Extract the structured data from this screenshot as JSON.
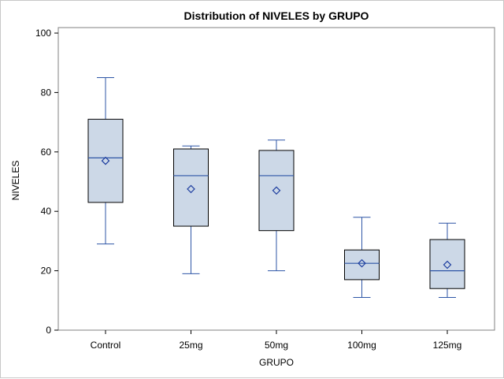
{
  "chart_data": {
    "type": "box",
    "title": "Distribution of NIVELES by GRUPO",
    "xlabel": "GRUPO",
    "ylabel": "NIVELES",
    "ylim": [
      0,
      100
    ],
    "yticks": [
      0,
      20,
      40,
      60,
      80,
      100
    ],
    "categories": [
      "Control",
      "25mg",
      "50mg",
      "100mg",
      "125mg"
    ],
    "boxes": [
      {
        "category": "Control",
        "min": 29,
        "q1": 43,
        "median": 58,
        "q3": 71,
        "max": 85,
        "mean": 57
      },
      {
        "category": "25mg",
        "min": 19,
        "q1": 35,
        "median": 52,
        "q3": 61,
        "max": 62,
        "mean": 47.5
      },
      {
        "category": "50mg",
        "min": 20,
        "q1": 33.5,
        "median": 52,
        "q3": 60.5,
        "max": 64,
        "mean": 47
      },
      {
        "category": "100mg",
        "min": 11,
        "q1": 17,
        "median": 22.5,
        "q3": 27,
        "max": 38,
        "mean": 22.5
      },
      {
        "category": "125mg",
        "min": 11,
        "q1": 14,
        "median": 20,
        "q3": 30.5,
        "max": 36,
        "mean": 22
      }
    ],
    "colors": {
      "box_fill": "#ccd8e7",
      "box_edge": "#000000",
      "whisker": "#2d55a6",
      "median": "#2d55a6",
      "mean_marker": "#1f3fa0",
      "frame": "#808080"
    },
    "grid": false,
    "legend": "none"
  }
}
